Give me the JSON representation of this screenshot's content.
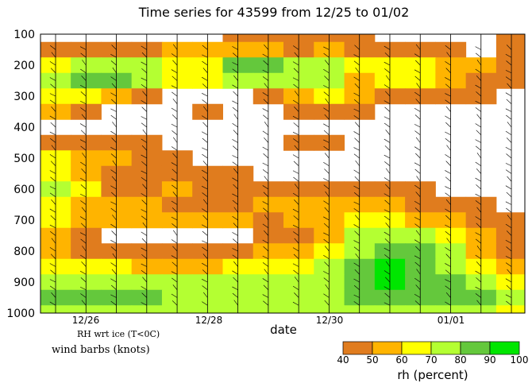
{
  "chart_data": {
    "type": "heatmap",
    "title": "Time series for 43599 from 12/25 to 01/02",
    "xlabel": "date",
    "x_tick_labels": [
      "12/26",
      "12/28",
      "12/30",
      "01/01"
    ],
    "y_tick_labels": [
      "100",
      "200",
      "300",
      "400",
      "500",
      "600",
      "700",
      "800",
      "900",
      "1000"
    ],
    "ylim": [
      1000,
      100
    ],
    "note": "RH wrt ice (T<0C)",
    "barbs_label": "wind barbs (knots)",
    "colorbar": {
      "label": "rh (percent)",
      "bounds": [
        "40",
        "50",
        "60",
        "70",
        "80",
        "90",
        "100"
      ],
      "colors": [
        "#E07C1E",
        "#FFB400",
        "#FFFF00",
        "#B4FF32",
        "#64C83C",
        "#00E600"
      ]
    },
    "times": [
      "12/25 12Z",
      "12/26 00Z",
      "12/26 12Z",
      "12/27 00Z",
      "12/27 12Z",
      "12/28 00Z",
      "12/28 12Z",
      "12/29 00Z",
      "12/29 12Z",
      "12/30 00Z",
      "12/30 12Z",
      "12/31 00Z",
      "12/31 12Z",
      "01/01 00Z",
      "01/01 12Z",
      "01/02 00Z"
    ],
    "levels": [
      100,
      150,
      200,
      250,
      300,
      350,
      400,
      450,
      500,
      550,
      600,
      650,
      700,
      750,
      800,
      850,
      900,
      950,
      1000
    ],
    "rh": [
      [
        0,
        0,
        0,
        0,
        0,
        0,
        45,
        45,
        45,
        45,
        45,
        0,
        0,
        0,
        0,
        45
      ],
      [
        45,
        45,
        45,
        45,
        55,
        55,
        55,
        55,
        45,
        55,
        45,
        45,
        45,
        45,
        0,
        45
      ],
      [
        65,
        75,
        75,
        75,
        65,
        65,
        85,
        85,
        75,
        75,
        65,
        65,
        65,
        55,
        55,
        45
      ],
      [
        75,
        85,
        85,
        75,
        65,
        65,
        75,
        75,
        75,
        75,
        55,
        65,
        65,
        55,
        45,
        45
      ],
      [
        65,
        65,
        55,
        45,
        0,
        0,
        0,
        45,
        55,
        65,
        55,
        45,
        45,
        45,
        45,
        0
      ],
      [
        55,
        45,
        0,
        0,
        0,
        45,
        0,
        0,
        45,
        45,
        45,
        0,
        0,
        0,
        0,
        0
      ],
      [
        0,
        0,
        0,
        0,
        0,
        0,
        0,
        0,
        0,
        0,
        0,
        0,
        0,
        0,
        0,
        0
      ],
      [
        45,
        45,
        45,
        45,
        0,
        0,
        0,
        0,
        45,
        45,
        0,
        0,
        0,
        0,
        0,
        0
      ],
      [
        65,
        55,
        55,
        45,
        45,
        0,
        0,
        0,
        0,
        0,
        0,
        0,
        0,
        0,
        0,
        0
      ],
      [
        65,
        55,
        45,
        45,
        45,
        45,
        45,
        0,
        0,
        0,
        0,
        0,
        0,
        0,
        0,
        0
      ],
      [
        75,
        65,
        45,
        45,
        55,
        45,
        45,
        45,
        45,
        45,
        45,
        45,
        45,
        0,
        0,
        0
      ],
      [
        65,
        55,
        55,
        55,
        45,
        45,
        45,
        55,
        55,
        55,
        55,
        55,
        45,
        45,
        45,
        0
      ],
      [
        65,
        55,
        55,
        55,
        55,
        55,
        55,
        45,
        55,
        55,
        65,
        65,
        55,
        55,
        45,
        45
      ],
      [
        55,
        45,
        0,
        0,
        0,
        0,
        0,
        45,
        45,
        55,
        75,
        75,
        75,
        65,
        55,
        45
      ],
      [
        55,
        45,
        45,
        45,
        45,
        45,
        45,
        55,
        55,
        65,
        75,
        85,
        85,
        75,
        55,
        45
      ],
      [
        65,
        65,
        65,
        55,
        55,
        55,
        65,
        65,
        65,
        75,
        85,
        95,
        85,
        75,
        65,
        55
      ],
      [
        75,
        75,
        75,
        75,
        75,
        75,
        75,
        75,
        75,
        75,
        85,
        95,
        85,
        85,
        75,
        65
      ],
      [
        85,
        85,
        85,
        85,
        75,
        75,
        75,
        75,
        75,
        75,
        85,
        85,
        85,
        85,
        85,
        75
      ],
      [
        75,
        75,
        75,
        75,
        75,
        75,
        75,
        75,
        75,
        75,
        75,
        75,
        75,
        75,
        75,
        65
      ]
    ]
  }
}
